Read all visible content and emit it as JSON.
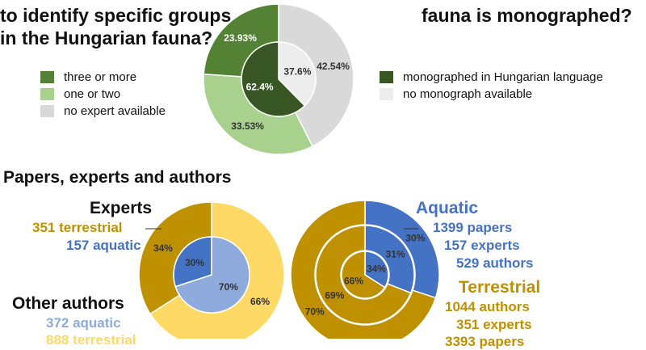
{
  "top_left": {
    "title_line1": "to identify specific groups",
    "title_line2": "in the Hungarian fauna?",
    "legend": [
      {
        "label": "three or more",
        "color": "#548235"
      },
      {
        "label": "one or two",
        "color": "#A9D18E"
      },
      {
        "label": "no expert available",
        "color": "#D9D9D9"
      }
    ]
  },
  "top_right": {
    "title_line1": "fauna is monographed?",
    "legend": [
      {
        "label": "monographed in Hungarian language",
        "color": "#375623"
      },
      {
        "label": "no monograph available",
        "color": "#EDEDED"
      }
    ]
  },
  "section_title": "Papers, experts and authors",
  "left_labels": {
    "experts_title": "Experts",
    "experts_terrestrial": "351 terrestrial",
    "experts_aquatic": "157 aquatic",
    "other_title": "Other authors",
    "other_aquatic": "372 aquatic",
    "other_terrestrial": "888 terrestrial"
  },
  "right_labels": {
    "aquatic_title": "Aquatic",
    "aquatic_papers": "1399 papers",
    "aquatic_experts": "157 experts",
    "aquatic_authors": "529 authors",
    "terrestrial_title": "Terrestrial",
    "terrestrial_authors": "1044 authors",
    "terrestrial_experts": "351 experts",
    "terrestrial_papers": "3393 papers"
  },
  "colors": {
    "aquatic_blue": "#4472C4",
    "aquatic_light_blue": "#8FAADC",
    "terrestrial_gold": "#BF9000",
    "terrestrial_light": "#FFD966"
  },
  "chart_data": [
    {
      "type": "pie",
      "rings": [
        {
          "ring": "outer",
          "slices": [
            {
              "name": "no expert available",
              "value": 42.54,
              "label": "42.54%"
            },
            {
              "name": "one or two",
              "value": 33.53,
              "label": "33.53%"
            },
            {
              "name": "three or more",
              "value": 23.93,
              "label": "23.93%"
            }
          ]
        },
        {
          "ring": "inner",
          "slices": [
            {
              "name": "no monograph available",
              "value": 37.6,
              "label": "37.6%"
            },
            {
              "name": "monographed in Hungarian language",
              "value": 62.4,
              "label": "62.4%"
            }
          ]
        }
      ]
    },
    {
      "type": "pie",
      "title": "Experts / Other authors",
      "rings": [
        {
          "ring": "outer",
          "slices": [
            {
              "name": "terrestrial",
              "value": 66,
              "label": "66%"
            },
            {
              "name": "aquatic",
              "value": 34,
              "label": "34%"
            }
          ]
        },
        {
          "ring": "inner",
          "slices": [
            {
              "name": "terrestrial",
              "value": 70,
              "label": "70%"
            },
            {
              "name": "aquatic",
              "value": 30,
              "label": "30%"
            }
          ]
        }
      ]
    },
    {
      "type": "pie",
      "title": "Aquatic / Terrestrial",
      "rings": [
        {
          "ring": "outer",
          "slices": [
            {
              "name": "aquatic",
              "value": 30,
              "label": "30%"
            },
            {
              "name": "terrestrial",
              "value": 70,
              "label": "70%"
            }
          ]
        },
        {
          "ring": "middle",
          "slices": [
            {
              "name": "aquatic",
              "value": 31,
              "label": "31%"
            },
            {
              "name": "terrestrial",
              "value": 69,
              "label": "69%"
            }
          ]
        },
        {
          "ring": "inner",
          "slices": [
            {
              "name": "aquatic",
              "value": 34,
              "label": "34%"
            },
            {
              "name": "terrestrial",
              "value": 66,
              "label": "66%"
            }
          ]
        }
      ]
    }
  ]
}
